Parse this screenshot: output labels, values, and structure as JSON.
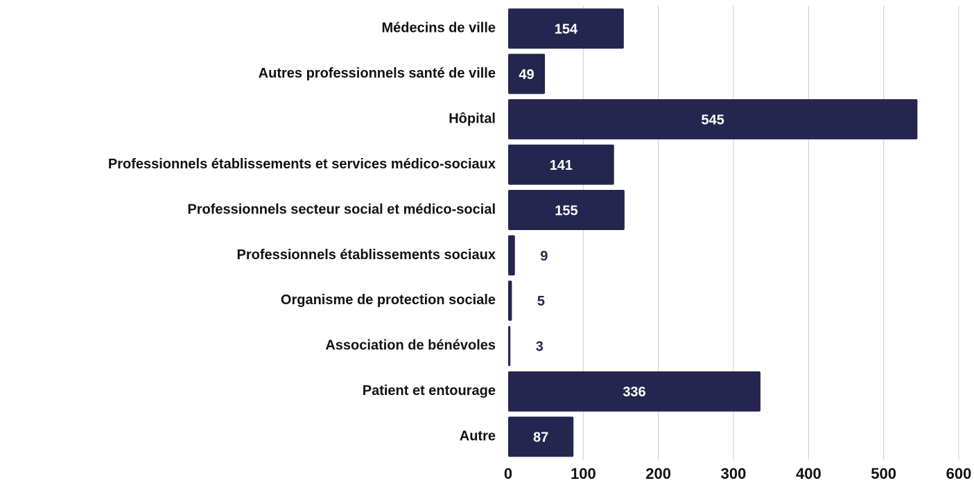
{
  "chart_data": {
    "type": "bar",
    "orientation": "horizontal",
    "categories": [
      "Médecins de ville",
      "Autres professionnels santé de ville",
      "Hôpital",
      "Professionnels établissements et services médico-sociaux",
      "Professionnels secteur social et médico-social",
      "Professionnels établissements sociaux",
      "Organisme de protection sociale",
      "Association de bénévoles",
      "Patient et entourage",
      "Autre"
    ],
    "values": [
      154,
      49,
      545,
      141,
      155,
      9,
      5,
      3,
      336,
      87
    ],
    "color": "#25264f",
    "xlim": [
      0,
      600
    ],
    "xticks": [
      0,
      100,
      200,
      300,
      400,
      500,
      600
    ],
    "grid": true
  }
}
